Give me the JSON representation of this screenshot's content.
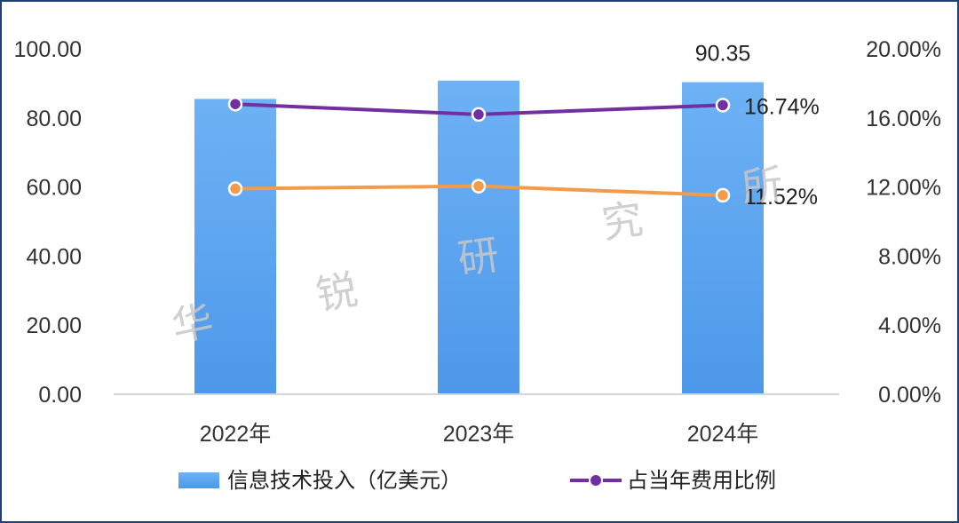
{
  "chart_data": {
    "type": "bar",
    "categories": [
      "2022年",
      "2023年",
      "2024年"
    ],
    "y_left": {
      "min": 0,
      "max": 100,
      "ticks": [
        "0.00",
        "20.00",
        "40.00",
        "60.00",
        "80.00",
        "100.00"
      ]
    },
    "y_right": {
      "min": 0,
      "max": 20,
      "ticks": [
        "0.00%",
        "4.00%",
        "8.00%",
        "12.00%",
        "16.00%",
        "20.00%"
      ]
    },
    "series": [
      {
        "name": "信息技术投入（亿美元）",
        "kind": "bar",
        "axis": "left",
        "values": [
          85.5,
          90.8,
          90.35
        ],
        "color": "#5aa5f0",
        "labels": [
          "",
          "",
          "90.35"
        ]
      },
      {
        "name": "占当年费用比例",
        "kind": "line",
        "axis": "right",
        "values": [
          16.8,
          16.2,
          16.74
        ],
        "color": "#7030a0",
        "labels": [
          "",
          "",
          "16.74%"
        ]
      },
      {
        "kind": "line",
        "axis": "right",
        "values": [
          11.9,
          12.05,
          11.52
        ],
        "color": "#f29b4a",
        "labels": [
          "",
          "",
          "11.52%"
        ]
      }
    ],
    "legend": {
      "position": "bottom"
    },
    "grid": false
  },
  "watermark": [
    "华",
    "锐",
    "研",
    "究",
    "所"
  ]
}
